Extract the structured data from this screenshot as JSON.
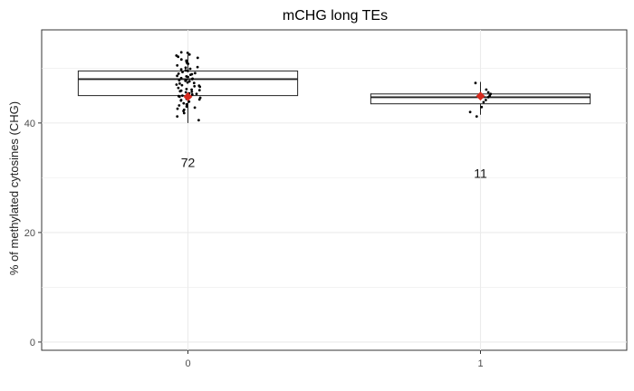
{
  "chart_data": {
    "type": "boxplot",
    "title": "mCHG long TEs",
    "xlabel": "",
    "ylabel": "% of methylated cytosines (CHG)",
    "ylim": [
      -1.5,
      57
    ],
    "yticks": [
      0,
      20,
      40
    ],
    "categories": [
      "0",
      "1"
    ],
    "grid": true,
    "legend": "none",
    "colors": {
      "mean_marker": "#d62a1e",
      "box_stroke": "#222222",
      "grid": "#ebebeb",
      "points": "#000000"
    },
    "boxes": [
      {
        "category": "0",
        "q1": 45.0,
        "median": 48.0,
        "q3": 49.5,
        "whisker_low": 40.0,
        "whisker_high": 52.5,
        "mean": 44.8,
        "count_label": "72",
        "count_y": 32.8
      },
      {
        "category": "1",
        "q1": 43.5,
        "median": 44.7,
        "q3": 45.3,
        "whisker_low": 41.5,
        "whisker_high": 47.5,
        "mean": 44.9,
        "count_label": "11",
        "count_y": 30.8
      }
    ],
    "points": [
      {
        "category": "0",
        "values": [
          52.8,
          52.5,
          52.1,
          51.6,
          51.2,
          50.8,
          50.5,
          50.2,
          49.9,
          49.6,
          49.3,
          49.1,
          48.9,
          48.6,
          48.4,
          48.2,
          48.0,
          47.8,
          47.6,
          47.4,
          47.2,
          47.0,
          46.8,
          46.6,
          46.4,
          46.2,
          46.0,
          45.8,
          45.6,
          45.4,
          45.2,
          45.0,
          44.8,
          44.6,
          44.4,
          44.2,
          43.9,
          43.6,
          43.2,
          42.8,
          42.4,
          41.8,
          41.2,
          40.5,
          52.9,
          51.9,
          50.9,
          49.8,
          48.8,
          47.7,
          46.7,
          45.7,
          44.9,
          44.1,
          43.4,
          42.6,
          52.3,
          50.1,
          48.1,
          46.1,
          44.3,
          42.2,
          51.4,
          49.5,
          47.9,
          45.3,
          43.0,
          48.5,
          46.9,
          45.9,
          47.3,
          49.0
        ]
      },
      {
        "category": "1",
        "values": [
          47.3,
          46.1,
          45.6,
          45.3,
          45.0,
          44.7,
          44.2,
          43.8,
          42.9,
          42.0,
          41.2
        ]
      }
    ]
  }
}
